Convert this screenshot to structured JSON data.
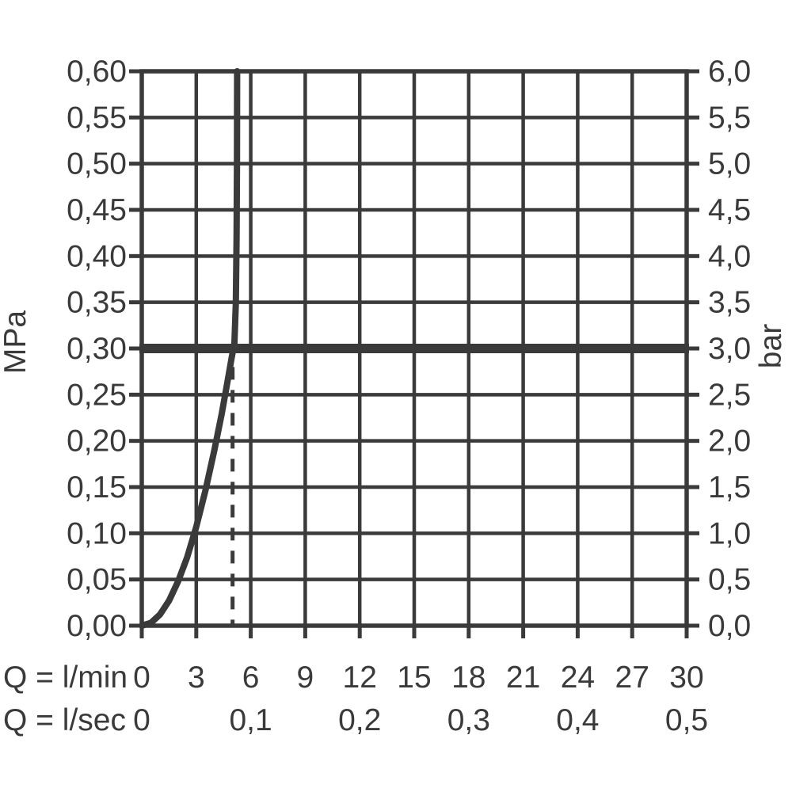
{
  "colors": {
    "ink": "#3a3a3a",
    "background": "#ffffff"
  },
  "chart_data": {
    "type": "line",
    "grid": {
      "show": true,
      "x_step_lmin": 3,
      "y_step_mpa": 0.05
    },
    "x_axis": {
      "row1_label": "Q = l/min",
      "row2_label": "Q = l/sec",
      "range_lmin": [
        0,
        30
      ],
      "row1_ticks": [
        "0",
        "3",
        "6",
        "9",
        "12",
        "15",
        "18",
        "21",
        "24",
        "27",
        "30"
      ],
      "row1_tick_values": [
        0,
        3,
        6,
        9,
        12,
        15,
        18,
        21,
        24,
        27,
        30
      ],
      "row2_ticks": [
        "0",
        "0,1",
        "0,2",
        "0,3",
        "0,4",
        "0,5"
      ],
      "row2_tick_positions_lmin": [
        0,
        6,
        12,
        18,
        24,
        30
      ]
    },
    "y_axis_left": {
      "label": "MPa",
      "range": [
        0,
        0.6
      ],
      "ticks": [
        "0,60",
        "0,55",
        "0,50",
        "0,45",
        "0,40",
        "0,35",
        "0,30",
        "0,25",
        "0,20",
        "0,15",
        "0,10",
        "0,05",
        "0,00"
      ],
      "tick_values": [
        0.6,
        0.55,
        0.5,
        0.45,
        0.4,
        0.35,
        0.3,
        0.25,
        0.2,
        0.15,
        0.1,
        0.05,
        0.0
      ]
    },
    "y_axis_right": {
      "label": "bar",
      "range": [
        0,
        6.0
      ],
      "ticks": [
        "6,0",
        "5,5",
        "5,0",
        "4,5",
        "4,0",
        "3,5",
        "3,0",
        "2,5",
        "2,0",
        "1,5",
        "1,0",
        "0,5",
        "0,0"
      ],
      "tick_values": [
        6.0,
        5.5,
        5.0,
        4.5,
        4.0,
        3.5,
        3.0,
        2.5,
        2.0,
        1.5,
        1.0,
        0.5,
        0.0
      ]
    },
    "series": [
      {
        "name": "flow-curve",
        "unit_x": "l/min",
        "unit_y": "MPa",
        "points": [
          [
            0,
            0.0
          ],
          [
            0.5,
            0.003
          ],
          [
            1,
            0.012
          ],
          [
            1.5,
            0.027
          ],
          [
            2,
            0.048
          ],
          [
            2.5,
            0.074
          ],
          [
            3,
            0.107
          ],
          [
            3.5,
            0.146
          ],
          [
            4,
            0.19
          ],
          [
            4.4,
            0.229
          ],
          [
            4.7,
            0.262
          ],
          [
            4.95,
            0.29
          ],
          [
            5.1,
            0.306
          ],
          [
            5.18,
            0.35
          ],
          [
            5.22,
            0.42
          ],
          [
            5.24,
            0.5
          ],
          [
            5.25,
            0.6
          ]
        ]
      }
    ],
    "reference_lines": [
      {
        "name": "pressure-3bar-line",
        "orientation": "horizontal",
        "value_mpa": 0.3,
        "value_bar": 3.0,
        "style": "thick-solid"
      },
      {
        "name": "flow-limit-dashed-line",
        "orientation": "vertical",
        "value_lmin": 5.0,
        "from_mpa": 0.0,
        "to_mpa": 0.28,
        "style": "dashed"
      }
    ]
  }
}
